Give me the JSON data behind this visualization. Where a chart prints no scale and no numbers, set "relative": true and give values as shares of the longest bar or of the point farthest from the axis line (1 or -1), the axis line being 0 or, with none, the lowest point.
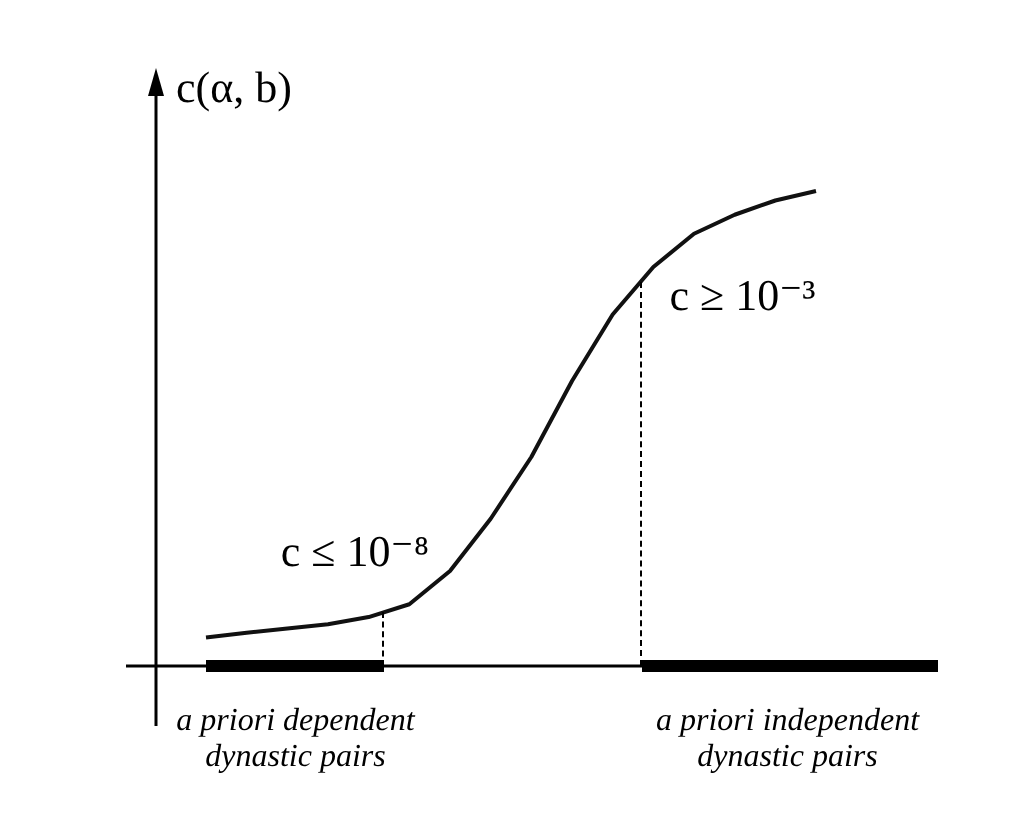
{
  "chart_data": {
    "type": "line",
    "relative": true,
    "ylabel": "c(α, b)",
    "legend": false,
    "marker": "none",
    "line_style": "solid",
    "categories": [
      null,
      null,
      null,
      null,
      null,
      null,
      null,
      null,
      null,
      null,
      null,
      null,
      null,
      null,
      null,
      null
    ],
    "series": [
      {
        "color": "#111111",
        "values": [
          0.06,
          0.07,
          0.079,
          0.088,
          0.103,
          0.13,
          0.2,
          0.31,
          0.44,
          0.6,
          0.74,
          0.84,
          0.91,
          0.95,
          0.98,
          1.0
        ]
      }
    ],
    "annotations": [
      "c ≤ 10⁻⁸",
      "c ≥ 10⁻³",
      "a priori dependent dynastic pairs",
      "a priori independent dynastic pairs"
    ]
  }
}
